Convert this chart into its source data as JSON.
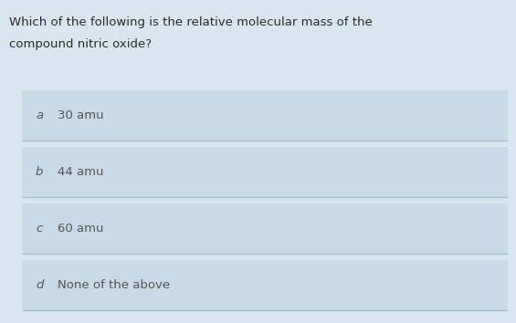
{
  "question_line1": "Which of the following is the relative molecular mass of the",
  "question_line2": "compound nitric oxide?",
  "options": [
    {
      "label": "a",
      "text": "30 amu"
    },
    {
      "label": "b",
      "text": "44 amu"
    },
    {
      "label": "c",
      "text": "60 amu"
    },
    {
      "label": "d",
      "text": "None of the above"
    }
  ],
  "bg_color": "#d8e6f0",
  "option_box_color": "#c8d9e8",
  "question_text_color": "#2a2a2a",
  "option_text_color": "#555555",
  "label_color": "#555555",
  "separator_color": "#a8bfcc",
  "fig_width": 5.65,
  "fig_height": 3.54,
  "dpi": 100
}
